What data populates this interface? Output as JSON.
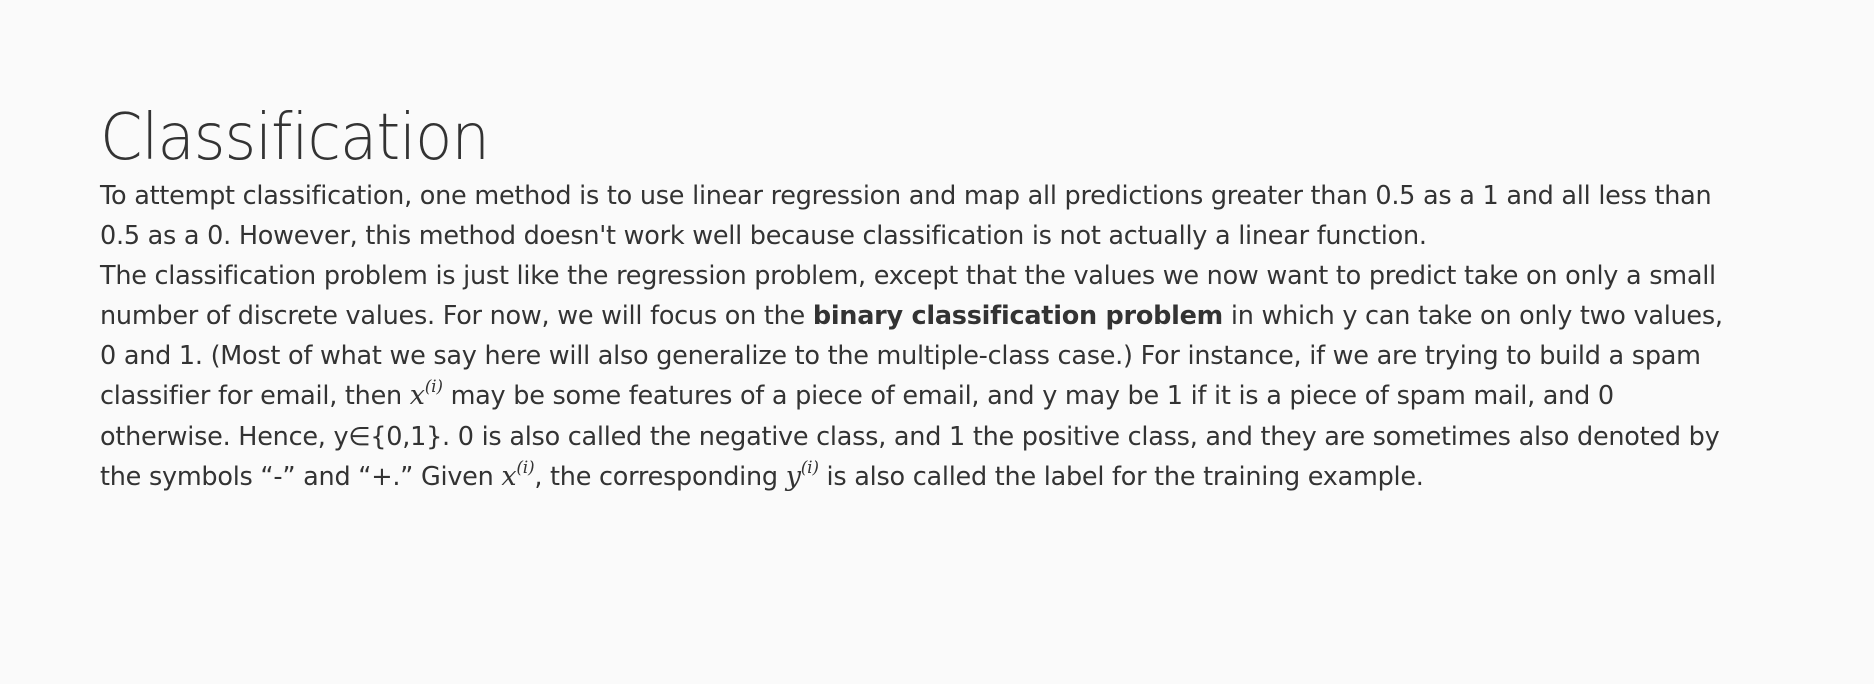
{
  "title": "Classification",
  "paragraph1": {
    "line1": "To attempt classification, one method is to use linear regression and map all predictions greater than 0.5 as a 1 and all less than",
    "line2": "0.5 as a 0. However, this method doesn't work well because classification is not actually a linear function."
  },
  "paragraph2": {
    "line1": "The classification problem is just like the regression problem, except that the values we now want to predict take on only a small",
    "line2_before": "number of discrete values. For now, we will focus on the ",
    "line2_bold": "binary classification problem",
    "line2_after": " in which y can take on only two values,",
    "line3": "0 and 1. (Most of what we say here will also generalize to the multiple-class case.) For instance, if we are trying to build a spam",
    "line4_before": "classifier for email, then ",
    "line4_math_base": "x",
    "line4_math_sup": "(i)",
    "line4_after": " may be some features of a piece of email, and y may be 1 if it is a piece of spam mail, and 0",
    "line5": "otherwise. Hence, y∈{0,1}. 0 is also called the negative class, and 1 the positive class, and they are sometimes also denoted by",
    "line6_before": "the symbols “-” and “+.” Given ",
    "line6_math1_base": "x",
    "line6_math1_sup": "(i)",
    "line6_middle": ", the corresponding ",
    "line6_math2_base": "y",
    "line6_math2_sup": "(i)",
    "line6_after": " is also called the label for the training example."
  }
}
